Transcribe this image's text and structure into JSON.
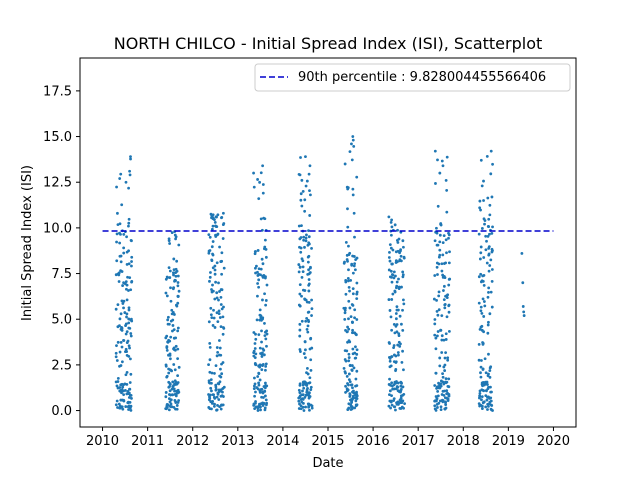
{
  "chart_data": {
    "type": "scatter",
    "title": "NORTH CHILCO - Initial Spread Index (ISI), Scatterplot",
    "xlabel": "Date",
    "ylabel": "Initial Spread Index (ISI)",
    "xlim": [
      2009.5,
      2020.5
    ],
    "ylim": [
      -0.9,
      19.3
    ],
    "x_ticks": [
      "2010",
      "2011",
      "2012",
      "2013",
      "2014",
      "2015",
      "2016",
      "2017",
      "2018",
      "2019",
      "2020"
    ],
    "y_ticks": [
      "0.0",
      "2.5",
      "5.0",
      "7.5",
      "10.0",
      "12.5",
      "15.0",
      "17.5"
    ],
    "legend_position": "top-right",
    "point_color": "#1f77b4",
    "reference_line": {
      "label": "90th percentile : 9.828004455566406",
      "value": 9.828004455566406,
      "x_range": [
        2010.0,
        2020.0
      ],
      "color": "#0000cc",
      "style": "dashed"
    },
    "series": [
      {
        "season_clusters": [
          {
            "year": 2010,
            "x_range": [
              2010.3,
              2010.65
            ],
            "max": 13.9,
            "points": 170,
            "upper_dense": 10.5
          },
          {
            "year": 2011,
            "x_range": [
              2011.4,
              2011.7
            ],
            "max": 9.8,
            "points": 150,
            "upper_dense": 8.0
          },
          {
            "year": 2012,
            "x_range": [
              2012.35,
              2012.7
            ],
            "max": 10.8,
            "points": 160,
            "upper_dense": 10.5
          },
          {
            "year": 2013,
            "x_range": [
              2013.35,
              2013.65
            ],
            "max": 13.4,
            "points": 150,
            "upper_dense": 9.0
          },
          {
            "year": 2014,
            "x_range": [
              2014.35,
              2014.65
            ],
            "max": 13.9,
            "points": 160,
            "upper_dense": 9.5
          },
          {
            "year": 2015,
            "x_range": [
              2015.35,
              2015.65
            ],
            "max": 15.0,
            "points": 160,
            "upper_dense": 8.5
          },
          {
            "year": 2016,
            "x_range": [
              2016.35,
              2016.7
            ],
            "max": 10.6,
            "points": 170,
            "upper_dense": 9.0
          },
          {
            "year": 2017,
            "x_range": [
              2017.35,
              2017.7
            ],
            "max": 14.2,
            "points": 160,
            "upper_dense": 10.0
          },
          {
            "year": 2018,
            "x_range": [
              2018.35,
              2018.65
            ],
            "max": 14.2,
            "points": 150,
            "upper_dense": 10.5
          }
        ],
        "points": [
          [
            2019.3,
            8.6
          ],
          [
            2019.32,
            7.0
          ],
          [
            2019.33,
            5.7
          ],
          [
            2019.34,
            5.4
          ],
          [
            2019.35,
            5.2
          ],
          [
            2010.62,
            13.9
          ],
          [
            2010.6,
            13.1
          ],
          [
            2010.61,
            12.9
          ],
          [
            2010.38,
            12.7
          ],
          [
            2010.52,
            12.5
          ],
          [
            2011.6,
            9.8
          ],
          [
            2011.62,
            9.4
          ],
          [
            2011.58,
            8.3
          ],
          [
            2012.68,
            10.8
          ],
          [
            2012.45,
            10.5
          ],
          [
            2012.5,
            10.3
          ],
          [
            2013.35,
            13.0
          ],
          [
            2013.55,
            13.4
          ],
          [
            2013.6,
            10.5
          ],
          [
            2014.5,
            13.9
          ],
          [
            2014.45,
            12.0
          ],
          [
            2014.6,
            13.4
          ],
          [
            2014.38,
            12.9
          ],
          [
            2014.42,
            11.2
          ],
          [
            2015.55,
            15.0
          ],
          [
            2015.52,
            14.6
          ],
          [
            2015.38,
            13.5
          ],
          [
            2015.45,
            12.2
          ],
          [
            2015.58,
            10.8
          ],
          [
            2016.35,
            10.6
          ],
          [
            2016.4,
            10.3
          ],
          [
            2016.55,
            9.2
          ],
          [
            2017.38,
            14.2
          ],
          [
            2017.55,
            13.4
          ],
          [
            2017.48,
            13.0
          ],
          [
            2017.62,
            12.6
          ],
          [
            2018.4,
            13.7
          ],
          [
            2018.62,
            14.2
          ],
          [
            2018.42,
            12.3
          ],
          [
            2018.45,
            11.5
          ]
        ]
      }
    ]
  }
}
